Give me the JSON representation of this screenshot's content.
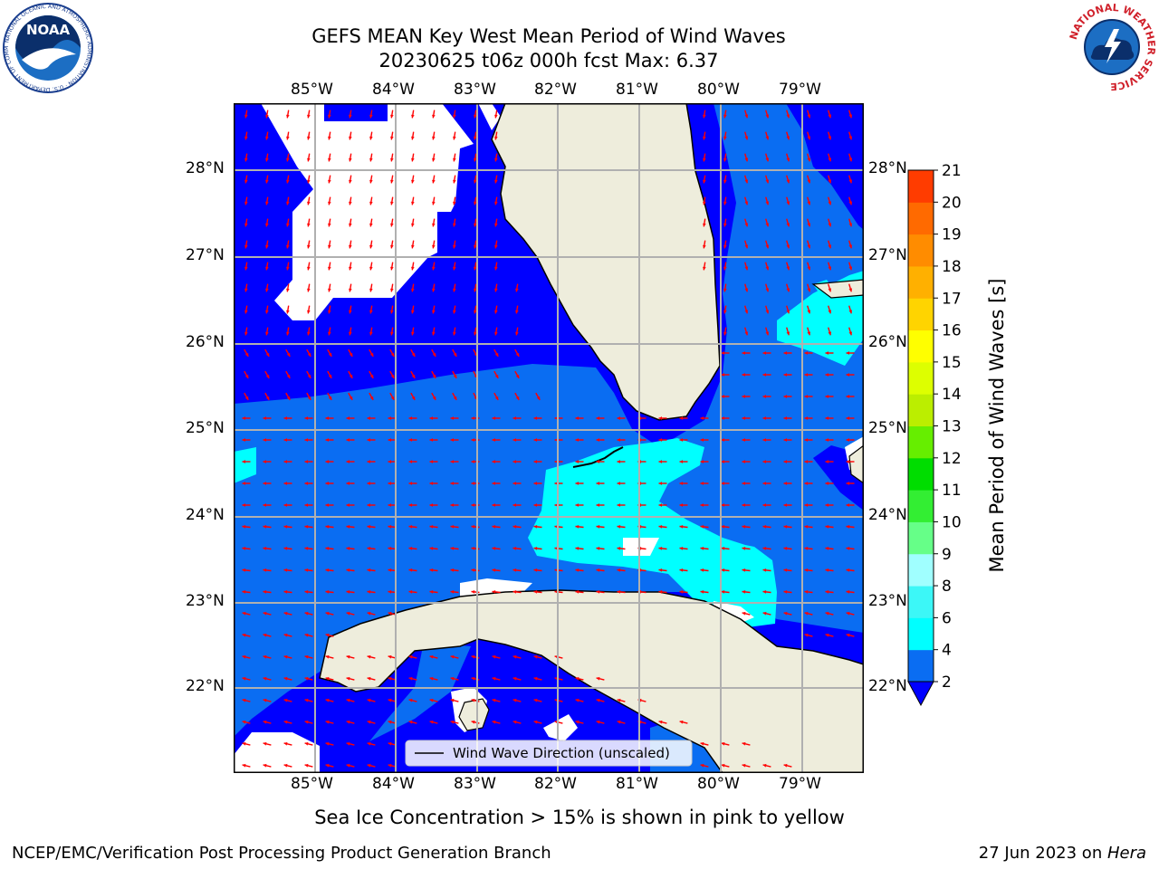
{
  "title_line1": "GEFS MEAN Key West Mean Period of Wind Waves",
  "title_line2": "20230625 t06z 000h fcst   Max: 6.37",
  "logos": {
    "left": {
      "name": "noaa-logo",
      "text": "NOAA",
      "ring_text": "NATIONAL OCEANIC AND ATMOSPHERIC ADMINISTRATION · U.S. DEPARTMENT OF COMMERCE"
    },
    "right": {
      "name": "nws-logo",
      "ring_text": "NATIONAL WEATHER SERVICE"
    }
  },
  "map": {
    "lon_labels": [
      "85°W",
      "84°W",
      "83°W",
      "82°W",
      "81°W",
      "80°W",
      "79°W"
    ],
    "lat_labels": [
      "28°N",
      "27°N",
      "26°N",
      "25°N",
      "24°N",
      "23°N",
      "22°N"
    ],
    "legend_label": "Wind Wave Direction (unscaled)",
    "colors": {
      "land": "#eeeddc",
      "coast": "#000000",
      "grid": "#b0b0b0",
      "arrow": "#ff0000",
      "no_data": "#ffffff"
    }
  },
  "colorbar": {
    "label": "Mean Period of Wind Waves [s]",
    "ticks": [
      "2",
      "4",
      "6",
      "8",
      "9",
      "10",
      "11",
      "12",
      "13",
      "14",
      "15",
      "16",
      "17",
      "18",
      "19",
      "20",
      "21"
    ],
    "colors": [
      "#0a6df2",
      "#00ffff",
      "#3cf7f7",
      "#a0ffff",
      "#66ff88",
      "#33ee33",
      "#00dd00",
      "#66ee00",
      "#bbee00",
      "#ddff00",
      "#ffff00",
      "#ffd400",
      "#ffb000",
      "#ff8c00",
      "#ff6a00",
      "#ff3c00",
      "#ff0000"
    ],
    "extend_below_color": "#0000ff"
  },
  "chart_data": {
    "type": "heatmap",
    "title": "GEFS MEAN Key West Mean Period of Wind Waves",
    "subtitle": "20230625 t06z 000h fcst   Max: 6.37",
    "variable": "Mean Period of Wind Waves [s]",
    "max": 6.37,
    "levels": [
      2,
      4,
      6,
      8,
      9,
      10,
      11,
      12,
      13,
      14,
      15,
      16,
      17,
      18,
      19,
      20,
      21
    ],
    "xlim": [
      "86°W",
      "78.3°W"
    ],
    "ylim": [
      "21.1°N",
      "28.8°N"
    ],
    "grid": true,
    "legend_position": "bottom-center"
  },
  "footer": {
    "note": "Sea Ice Concentration > 15% is shown in pink to yellow",
    "left": "NCEP/EMC/Verification Post Processing Product Generation Branch",
    "right_date": "27 Jun 2023 on ",
    "right_host": "Hera"
  }
}
